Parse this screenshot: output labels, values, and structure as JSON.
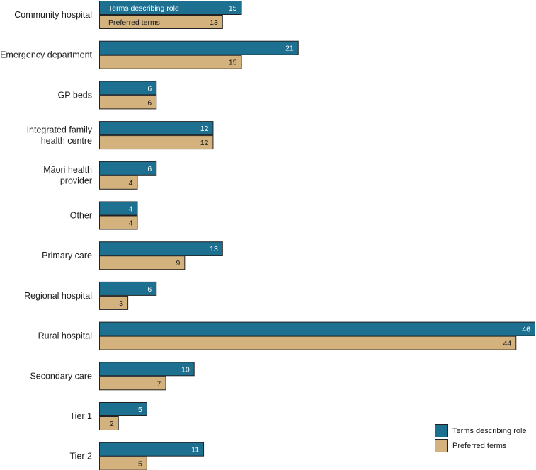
{
  "chart_data": {
    "type": "bar",
    "orientation": "horizontal",
    "categories": [
      "Community hospital",
      "Emergency department",
      "GP beds",
      "Integrated family health centre",
      "Māori health provider",
      "Other",
      "Primary care",
      "Regional hospital",
      "Rural hospital",
      "Secondary care",
      "Tier 1",
      "Tier 2"
    ],
    "series": [
      {
        "name": "Terms describing role",
        "color": "#1d7090",
        "label_color": "#ffffff",
        "values": [
          15,
          21,
          6,
          12,
          6,
          4,
          13,
          6,
          46,
          10,
          5,
          11
        ]
      },
      {
        "name": "Preferred terms",
        "color": "#d3b27e",
        "label_color": "#1a1a1a",
        "values": [
          13,
          15,
          6,
          12,
          4,
          4,
          9,
          3,
          44,
          7,
          2,
          5
        ]
      }
    ],
    "in_bar_series_labels": true,
    "legend": [
      "Terms describing role",
      "Preferred terms"
    ],
    "legend_position": "bottom-right",
    "grid": false,
    "xlim": [
      0,
      46
    ]
  }
}
